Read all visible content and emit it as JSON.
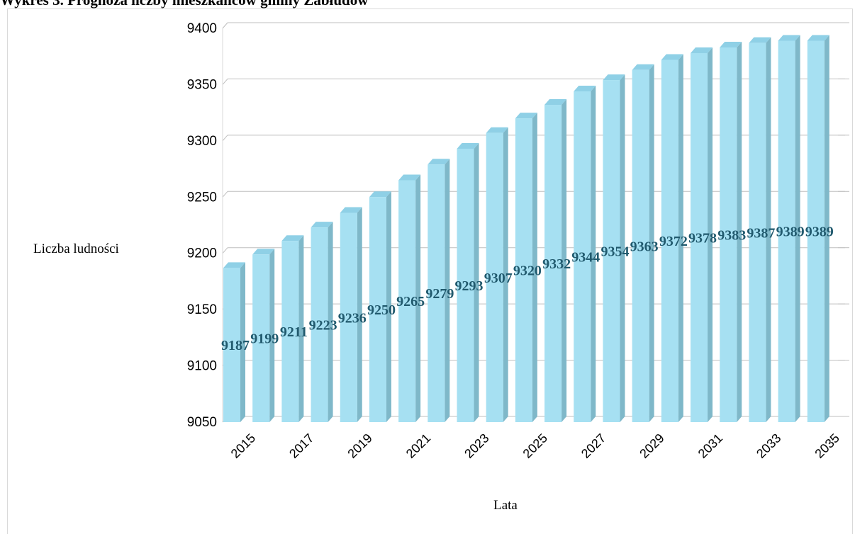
{
  "chart_data": {
    "type": "bar",
    "title": "Wykres 3. Prognoza liczby mieszkańców gminy Zabłudów",
    "xlabel": "Lata",
    "ylabel": "Liczba ludności",
    "ylim": [
      9050,
      9400
    ],
    "yticks": [
      9050,
      9100,
      9150,
      9200,
      9250,
      9300,
      9350,
      9400
    ],
    "xtick_labels": [
      "2015",
      "2017",
      "2019",
      "2021",
      "2023",
      "2025",
      "2027",
      "2029",
      "2031",
      "2033",
      "2035"
    ],
    "categories": [
      "2015",
      "2016",
      "2017",
      "2018",
      "2019",
      "2020",
      "2021",
      "2022",
      "2023",
      "2024",
      "2025",
      "2026",
      "2027",
      "2028",
      "2029",
      "2030",
      "2031",
      "2032",
      "2033",
      "2034",
      "2035"
    ],
    "values": [
      9187,
      9199,
      9211,
      9223,
      9236,
      9250,
      9265,
      9279,
      9293,
      9307,
      9320,
      9332,
      9344,
      9354,
      9363,
      9372,
      9378,
      9383,
      9387,
      9389,
      9389
    ],
    "grid": true,
    "legend": "none",
    "bar_color": "#a6e0f2",
    "label_color": "#215a6e"
  }
}
